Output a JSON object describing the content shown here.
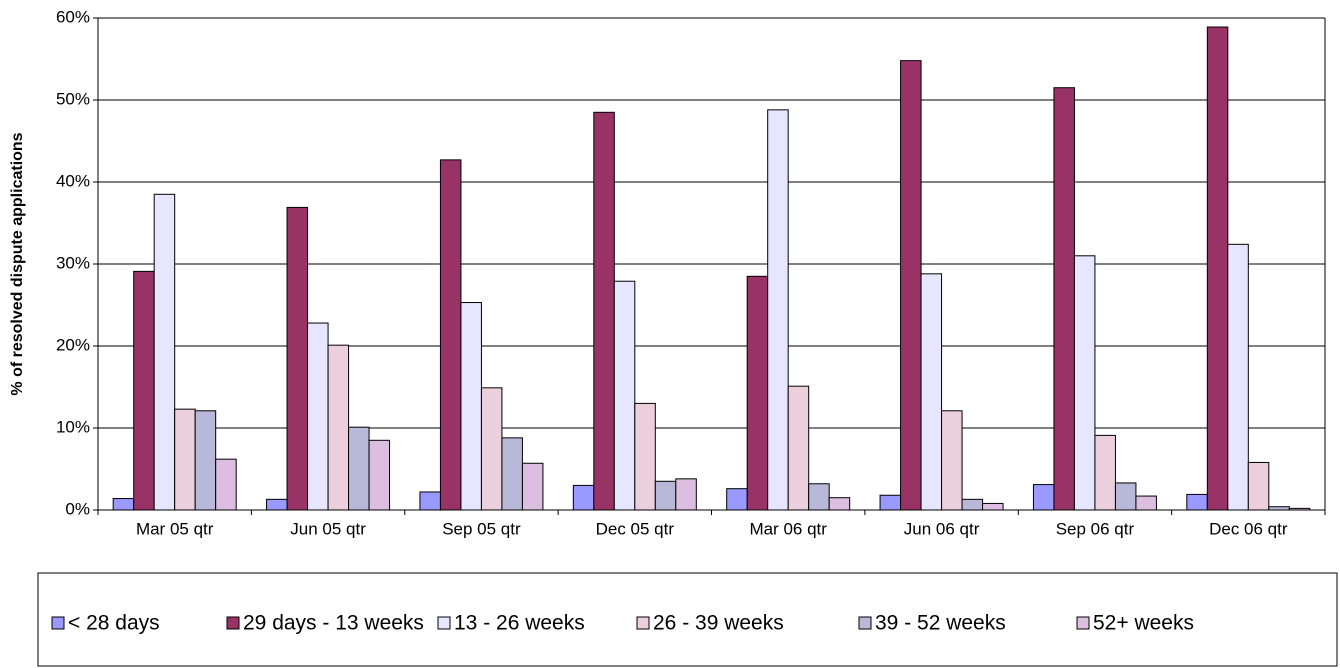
{
  "chart_data": {
    "type": "bar",
    "y_label": "% of resolved dispute applications",
    "categories": [
      "Mar 05 qtr",
      "Jun 05 qtr",
      "Sep 05 qtr",
      "Dec 05 qtr",
      "Mar 06 qtr",
      "Jun 06 qtr",
      "Sep 06 qtr",
      "Dec 06 qtr"
    ],
    "series": [
      {
        "name": "< 28 days",
        "color": "#9999ff",
        "values": [
          1.4,
          1.3,
          2.2,
          3.0,
          2.6,
          1.8,
          3.1,
          1.9
        ]
      },
      {
        "name": "29 days - 13 weeks",
        "color": "#993366",
        "values": [
          29.1,
          36.9,
          42.7,
          48.5,
          28.5,
          54.8,
          51.5,
          58.9
        ]
      },
      {
        "name": "13 - 26 weeks",
        "color": "#e6e6ff",
        "values": [
          38.5,
          22.8,
          25.3,
          27.9,
          48.8,
          28.8,
          31.0,
          32.4
        ]
      },
      {
        "name": "26 - 39 weeks",
        "color": "#eccfdc",
        "values": [
          12.3,
          20.1,
          14.9,
          13.0,
          15.1,
          12.1,
          9.1,
          5.8
        ]
      },
      {
        "name": "39 - 52 weeks",
        "color": "#b8b8d8",
        "values": [
          12.1,
          10.1,
          8.8,
          3.5,
          3.2,
          1.3,
          3.3,
          0.4
        ]
      },
      {
        "name": "52+ weeks",
        "color": "#dcbfe0",
        "values": [
          6.2,
          8.5,
          5.7,
          3.8,
          1.5,
          0.8,
          1.7,
          0.2
        ]
      }
    ],
    "ylim": [
      0,
      60
    ],
    "yticks": [
      {
        "value": 0,
        "label": "0%"
      },
      {
        "value": 10,
        "label": "10%"
      },
      {
        "value": 20,
        "label": "20%"
      },
      {
        "value": 30,
        "label": "30%"
      },
      {
        "value": 40,
        "label": "40%"
      },
      {
        "value": 50,
        "label": "50%"
      },
      {
        "value": 60,
        "label": "60%"
      }
    ],
    "grid": true,
    "legend": "bottom"
  }
}
